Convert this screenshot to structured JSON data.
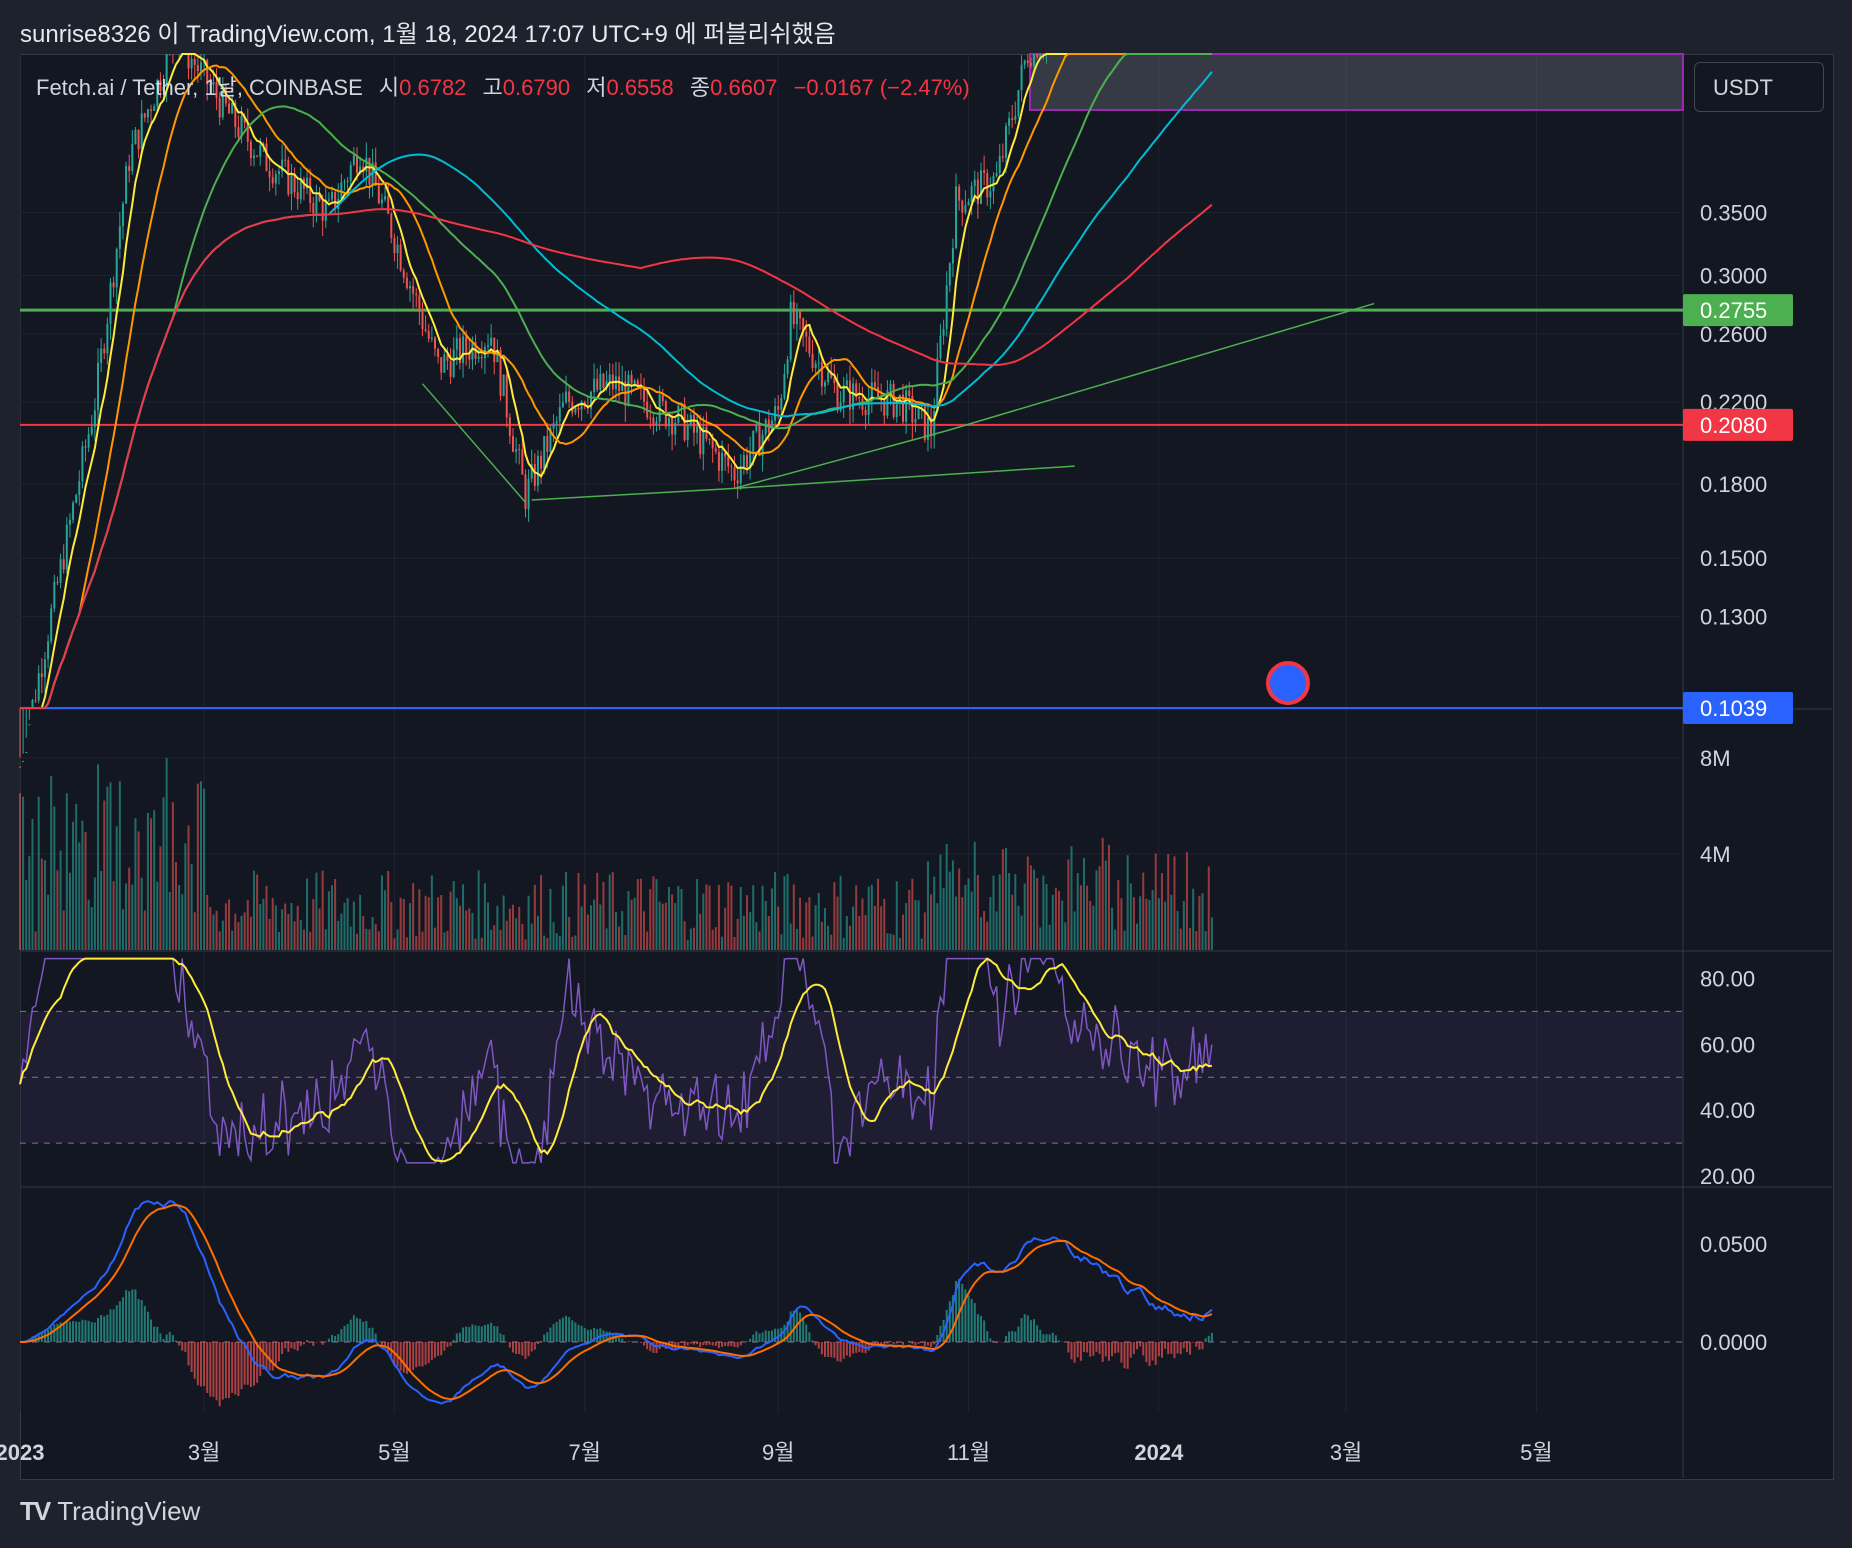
{
  "header": {
    "published": "sunrise8326 이 TradingView.com, 1월 18, 2024 17:07 UTC+9 에 퍼블리쉬했음"
  },
  "legend": {
    "symbol": "Fetch.ai / Tether, 1날, COINBASE",
    "open_label": "시",
    "open": "0.6782",
    "high_label": "고",
    "high": "0.6790",
    "low_label": "저",
    "low": "0.6558",
    "close_label": "종",
    "close": "0.6607",
    "change": "−0.0167 (−2.47%)"
  },
  "currency_button": "USDT",
  "footer": {
    "brand": "TradingView"
  },
  "colors": {
    "background": "#131722",
    "up": "#26a69a",
    "down": "#ef5350",
    "green_line": "#4caf50",
    "red_line": "#f23645",
    "blue_line": "#2962ff",
    "rsi": "#7e57c2",
    "rsi_ma": "#ffeb3b",
    "macd": "#2962ff",
    "signal": "#ff6d00"
  },
  "chart_data": [
    {
      "type": "candlestick",
      "title": "Fetch.ai / Tether, 1날, COINBASE",
      "scale": "log",
      "ylim": [
        0.1039,
        0.45
      ],
      "y_ticks": [
        "0.3500",
        "0.3000",
        "0.2600",
        "0.2200",
        "0.1800",
        "0.1500",
        "0.1300"
      ],
      "x_ticks": [
        "2023",
        "3월",
        "5월",
        "7월",
        "9월",
        "11월",
        "2024",
        "3월",
        "5월"
      ],
      "price_labels": [
        {
          "value": "0.2755",
          "color": "#4caf50"
        },
        {
          "value": "0.2080",
          "color": "#f23645"
        },
        {
          "value": "0.1039",
          "color": "#2962ff"
        }
      ],
      "close_series": [
        {
          "date": "2023-01-01",
          "value": 0.09
        },
        {
          "date": "2023-01-25",
          "value": 0.22
        },
        {
          "date": "2023-02-05",
          "value": 0.4
        },
        {
          "date": "2023-02-20",
          "value": 0.54
        },
        {
          "date": "2023-03-10",
          "value": 0.44
        },
        {
          "date": "2023-03-20",
          "value": 0.4
        },
        {
          "date": "2023-04-10",
          "value": 0.35
        },
        {
          "date": "2023-04-20",
          "value": 0.41
        },
        {
          "date": "2023-05-01",
          "value": 0.33
        },
        {
          "date": "2023-05-15",
          "value": 0.24
        },
        {
          "date": "2023-06-01",
          "value": 0.26
        },
        {
          "date": "2023-06-12",
          "value": 0.175
        },
        {
          "date": "2023-06-25",
          "value": 0.22
        },
        {
          "date": "2023-07-10",
          "value": 0.23
        },
        {
          "date": "2023-08-01",
          "value": 0.21
        },
        {
          "date": "2023-08-18",
          "value": 0.185
        },
        {
          "date": "2023-09-01",
          "value": 0.215
        },
        {
          "date": "2023-09-05",
          "value": 0.27
        },
        {
          "date": "2023-09-20",
          "value": 0.225
        },
        {
          "date": "2023-10-10",
          "value": 0.22
        },
        {
          "date": "2023-10-20",
          "value": 0.205
        },
        {
          "date": "2023-10-28",
          "value": 0.36
        },
        {
          "date": "2023-11-10",
          "value": 0.38
        },
        {
          "date": "2023-11-20",
          "value": 0.52
        },
        {
          "date": "2023-12-10",
          "value": 0.6
        },
        {
          "date": "2024-01-18",
          "value": 0.6607
        }
      ],
      "volume_ticks": [
        "8M",
        "4M"
      ],
      "rsi_ticks": [
        "80.00",
        "60.00",
        "40.00",
        "20.00"
      ],
      "macd_ticks": [
        "0.0500",
        "0.0000"
      ]
    }
  ]
}
